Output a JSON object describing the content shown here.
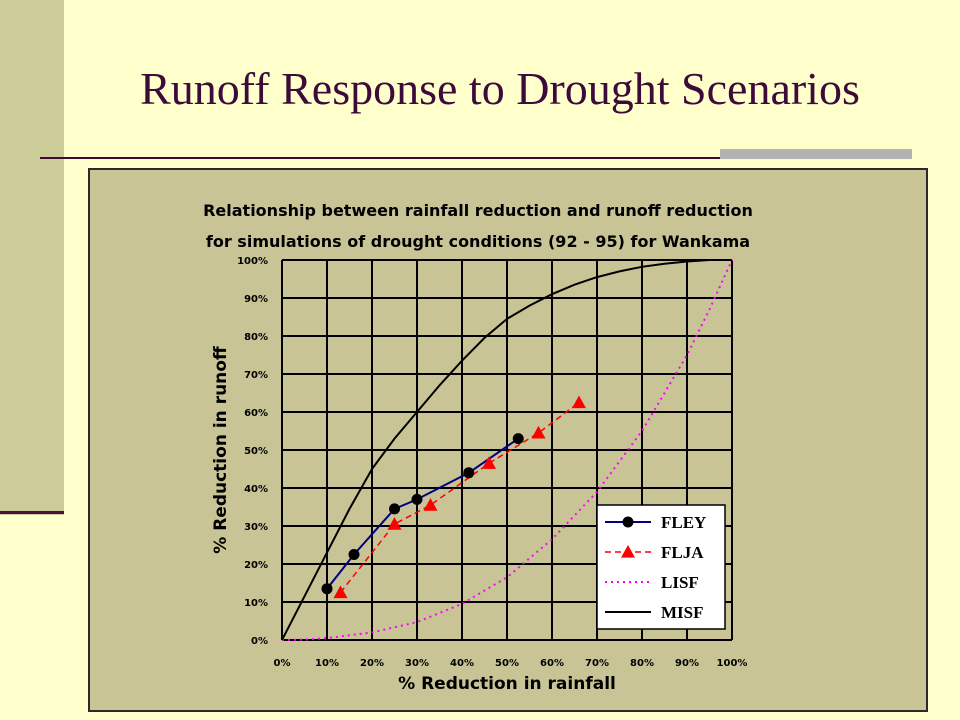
{
  "slide": {
    "title": "Runoff Response to Drought Scenarios"
  },
  "chart_data": {
    "type": "line",
    "title_lines": [
      "Relationship between rainfall reduction and runoff reduction",
      "for simulations of drought conditions (92 - 95) for Wankama"
    ],
    "xlabel": "% Reduction in rainfall",
    "ylabel": "% Reduction in runoff",
    "xlim": [
      0,
      100
    ],
    "ylim": [
      0,
      100
    ],
    "x_ticks": [
      "0%",
      "10%",
      "20%",
      "30%",
      "40%",
      "50%",
      "60%",
      "70%",
      "80%",
      "90%",
      "100%"
    ],
    "y_ticks": [
      "0%",
      "10%",
      "20%",
      "30%",
      "40%",
      "50%",
      "60%",
      "70%",
      "80%",
      "90%",
      "100%"
    ],
    "grid": true,
    "legend_position": "bottom-right",
    "series": [
      {
        "name": "FLEY",
        "style": "solid-circle",
        "color": "#000080",
        "markerColor": "#000000",
        "points": [
          [
            10,
            13.5
          ],
          [
            16,
            22.5
          ],
          [
            25,
            34.5
          ],
          [
            30,
            37
          ],
          [
            41.5,
            44
          ],
          [
            52.5,
            53
          ]
        ]
      },
      {
        "name": "FLJA",
        "style": "dashed-triangle",
        "color": "#ff0000",
        "markerColor": "#ff0000",
        "points": [
          [
            13,
            12.5
          ],
          [
            25,
            30.5
          ],
          [
            33,
            35.5
          ],
          [
            46,
            46.5
          ],
          [
            57,
            54.5
          ],
          [
            66,
            62.5
          ]
        ]
      },
      {
        "name": "LISF",
        "style": "dotted",
        "color": "#ff00ff",
        "points": [
          [
            0,
            0
          ],
          [
            5,
            0.1
          ],
          [
            10,
            0.5
          ],
          [
            20,
            2
          ],
          [
            30,
            4.7
          ],
          [
            40,
            9.5
          ],
          [
            50,
            16.5
          ],
          [
            60,
            26.5
          ],
          [
            70,
            39
          ],
          [
            80,
            55
          ],
          [
            90,
            75
          ],
          [
            95,
            87
          ],
          [
            100,
            100
          ]
        ]
      },
      {
        "name": "MISF",
        "style": "solid",
        "color": "#000000",
        "points": [
          [
            0,
            0
          ],
          [
            5,
            11.5
          ],
          [
            10,
            23
          ],
          [
            15,
            34.5
          ],
          [
            20,
            45
          ],
          [
            25,
            53
          ],
          [
            30,
            60
          ],
          [
            35,
            67
          ],
          [
            40,
            73.5
          ],
          [
            45,
            79.5
          ],
          [
            50,
            84.5
          ],
          [
            55,
            88
          ],
          [
            60,
            91
          ],
          [
            65,
            93.5
          ],
          [
            70,
            95.5
          ],
          [
            75,
            97
          ],
          [
            80,
            98.2
          ],
          [
            85,
            99
          ],
          [
            90,
            99.6
          ],
          [
            95,
            100
          ],
          [
            100,
            100
          ]
        ]
      }
    ]
  }
}
